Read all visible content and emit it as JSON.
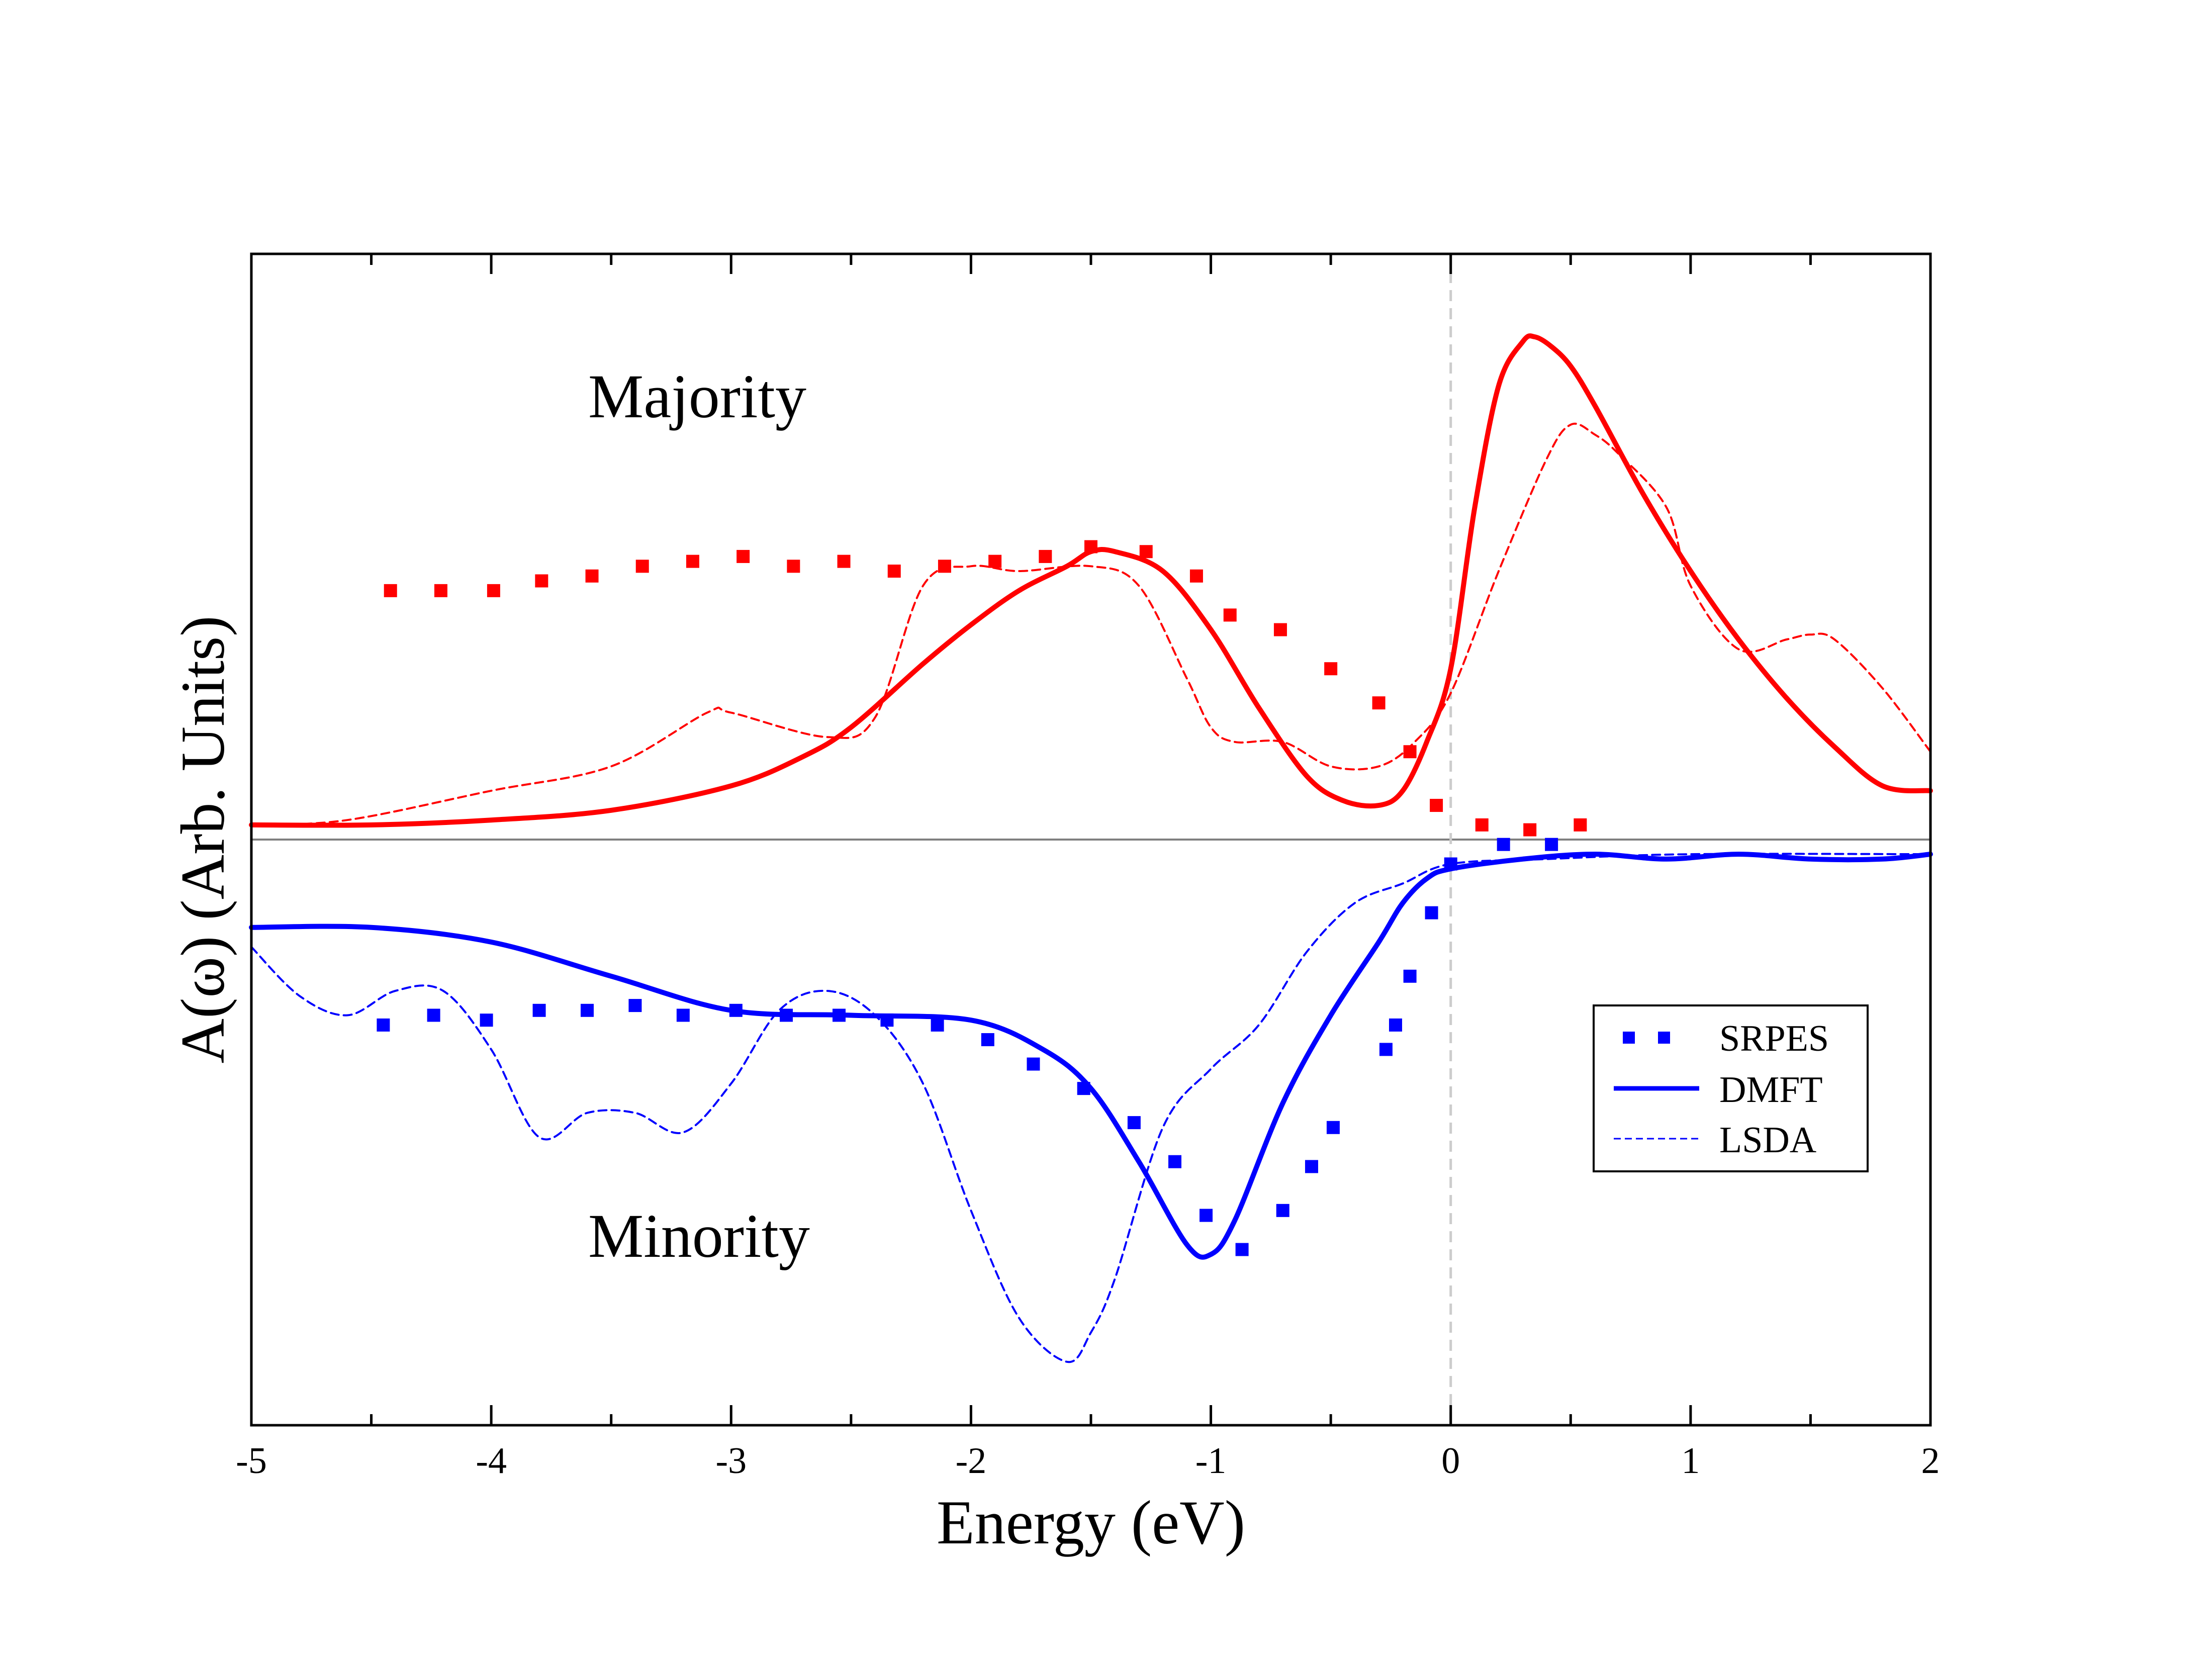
{
  "chart_data": {
    "type": "line",
    "title": "",
    "xlabel": "Energy (eV)",
    "ylabel": "A(ω) (Arb. Units)",
    "xlim": [
      -5,
      2
    ],
    "ylim": [
      -1.2,
      1.2
    ],
    "xticks": [
      -5,
      -4,
      -3,
      -2,
      -1,
      0,
      1,
      2
    ],
    "xtick_labels": [
      "-5",
      "-4",
      "-3",
      "-2",
      "-1",
      "0",
      "1",
      "2"
    ],
    "reference_lines": [
      {
        "type": "horizontal",
        "y": 0,
        "color": "#808080"
      },
      {
        "type": "vertical",
        "x": 0,
        "color": "#cccccc",
        "style": "dashed"
      }
    ],
    "annotations": [
      {
        "text": "Majority",
        "x": -3.6,
        "y": 0.9
      },
      {
        "text": "Minority",
        "x": -3.6,
        "y": -0.8
      }
    ],
    "legend": {
      "position": "lower-right",
      "entries": [
        "SRPES",
        "DMFT",
        "LSDA"
      ]
    },
    "series": [
      {
        "name": "SRPES",
        "group": "majority",
        "style": "markers",
        "color": "#ff0000",
        "x": [
          -4.42,
          -4.21,
          -3.99,
          -3.79,
          -3.58,
          -3.37,
          -3.16,
          -2.95,
          -2.74,
          -2.53,
          -2.32,
          -2.11,
          -1.9,
          -1.69,
          -1.5,
          -1.27,
          -1.06,
          -0.92,
          -0.71,
          -0.5,
          -0.3,
          -0.17,
          -0.06,
          0.13,
          0.33,
          0.54
        ],
        "y": [
          0.51,
          0.51,
          0.51,
          0.53,
          0.54,
          0.56,
          0.57,
          0.58,
          0.56,
          0.57,
          0.55,
          0.56,
          0.57,
          0.58,
          0.6,
          0.59,
          0.54,
          0.46,
          0.43,
          0.35,
          0.28,
          0.18,
          0.07,
          0.03,
          0.02,
          0.03
        ]
      },
      {
        "name": "DMFT",
        "group": "majority",
        "style": "solid",
        "color": "#ff0000",
        "x": [
          -5,
          -4.5,
          -4,
          -3.5,
          -3,
          -2.7,
          -2.5,
          -2.2,
          -2,
          -1.8,
          -1.6,
          -1.5,
          -1.4,
          -1.2,
          -1,
          -0.8,
          -0.6,
          -0.45,
          -0.3,
          -0.2,
          -0.1,
          0,
          0.1,
          0.2,
          0.3,
          0.35,
          0.42,
          0.5,
          0.6,
          0.8,
          1,
          1.2,
          1.4,
          1.6,
          1.8,
          2
        ],
        "y": [
          0.03,
          0.03,
          0.04,
          0.06,
          0.11,
          0.17,
          0.23,
          0.36,
          0.44,
          0.51,
          0.56,
          0.59,
          0.59,
          0.55,
          0.43,
          0.27,
          0.13,
          0.08,
          0.07,
          0.1,
          0.2,
          0.35,
          0.68,
          0.93,
          1.02,
          1.03,
          1.01,
          0.97,
          0.89,
          0.71,
          0.55,
          0.41,
          0.29,
          0.19,
          0.11,
          0.1
        ]
      },
      {
        "name": "LSDA",
        "group": "majority",
        "style": "dashed",
        "color": "#ff0000",
        "x": [
          -5,
          -4.6,
          -4,
          -3.5,
          -3.1,
          -3,
          -2.6,
          -2.4,
          -2.2,
          -2,
          -1.8,
          -1.5,
          -1.3,
          -1.1,
          -1,
          -0.9,
          -0.7,
          -0.5,
          -0.3,
          -0.15,
          0,
          0.2,
          0.4,
          0.5,
          0.6,
          0.7,
          0.9,
          1,
          1.2,
          1.4,
          1.5,
          1.6,
          1.8,
          2
        ],
        "y": [
          0.03,
          0.04,
          0.1,
          0.15,
          0.26,
          0.26,
          0.21,
          0.25,
          0.52,
          0.56,
          0.55,
          0.56,
          0.52,
          0.33,
          0.23,
          0.2,
          0.2,
          0.15,
          0.15,
          0.2,
          0.3,
          0.55,
          0.78,
          0.85,
          0.83,
          0.79,
          0.68,
          0.52,
          0.39,
          0.41,
          0.42,
          0.41,
          0.31,
          0.18
        ]
      },
      {
        "name": "SRPES",
        "group": "minority",
        "style": "markers",
        "color": "#0000ff",
        "x": [
          -4.45,
          -4.24,
          -4.02,
          -3.8,
          -3.6,
          -3.4,
          -3.2,
          -2.98,
          -2.77,
          -2.55,
          -2.35,
          -2.14,
          -1.93,
          -1.74,
          -1.53,
          -1.32,
          -1.15,
          -1.02,
          -0.87,
          -0.7,
          -0.58,
          -0.49,
          -0.27,
          -0.23,
          -0.17,
          -0.08,
          0.0,
          0.22,
          0.42
        ],
        "y": [
          -0.38,
          -0.36,
          -0.37,
          -0.35,
          -0.35,
          -0.34,
          -0.36,
          -0.35,
          -0.36,
          -0.36,
          -0.37,
          -0.38,
          -0.41,
          -0.46,
          -0.51,
          -0.58,
          -0.66,
          -0.77,
          -0.84,
          -0.76,
          -0.67,
          -0.59,
          -0.43,
          -0.38,
          -0.28,
          -0.15,
          -0.05,
          -0.01,
          -0.01
        ]
      },
      {
        "name": "DMFT",
        "group": "minority",
        "style": "solid",
        "color": "#0000ff",
        "x": [
          -5,
          -4.5,
          -4,
          -3.5,
          -3,
          -2.5,
          -2,
          -1.7,
          -1.5,
          -1.3,
          -1.1,
          -1,
          -0.9,
          -0.7,
          -0.5,
          -0.3,
          -0.2,
          -0.1,
          0,
          0.3,
          0.6,
          0.9,
          1.2,
          1.5,
          1.8,
          2
        ],
        "y": [
          -0.18,
          -0.18,
          -0.21,
          -0.28,
          -0.35,
          -0.36,
          -0.37,
          -0.43,
          -0.51,
          -0.66,
          -0.83,
          -0.85,
          -0.78,
          -0.54,
          -0.36,
          -0.21,
          -0.13,
          -0.08,
          -0.06,
          -0.04,
          -0.03,
          -0.04,
          -0.03,
          -0.04,
          -0.04,
          -0.03
        ]
      },
      {
        "name": "LSDA",
        "group": "minority",
        "style": "dashed",
        "color": "#0000ff",
        "x": [
          -5,
          -4.8,
          -4.6,
          -4.4,
          -4.2,
          -4,
          -3.8,
          -3.6,
          -3.4,
          -3.2,
          -3,
          -2.8,
          -2.6,
          -2.4,
          -2.2,
          -2,
          -1.8,
          -1.6,
          -1.5,
          -1.4,
          -1.2,
          -1,
          -0.8,
          -0.6,
          -0.4,
          -0.2,
          0,
          0.4,
          1,
          2
        ],
        "y": [
          -0.22,
          -0.32,
          -0.36,
          -0.31,
          -0.31,
          -0.43,
          -0.61,
          -0.56,
          -0.56,
          -0.6,
          -0.5,
          -0.35,
          -0.31,
          -0.36,
          -0.5,
          -0.76,
          -0.98,
          -1.07,
          -1.01,
          -0.9,
          -0.59,
          -0.47,
          -0.38,
          -0.23,
          -0.13,
          -0.09,
          -0.05,
          -0.04,
          -0.03,
          -0.03
        ]
      }
    ]
  }
}
